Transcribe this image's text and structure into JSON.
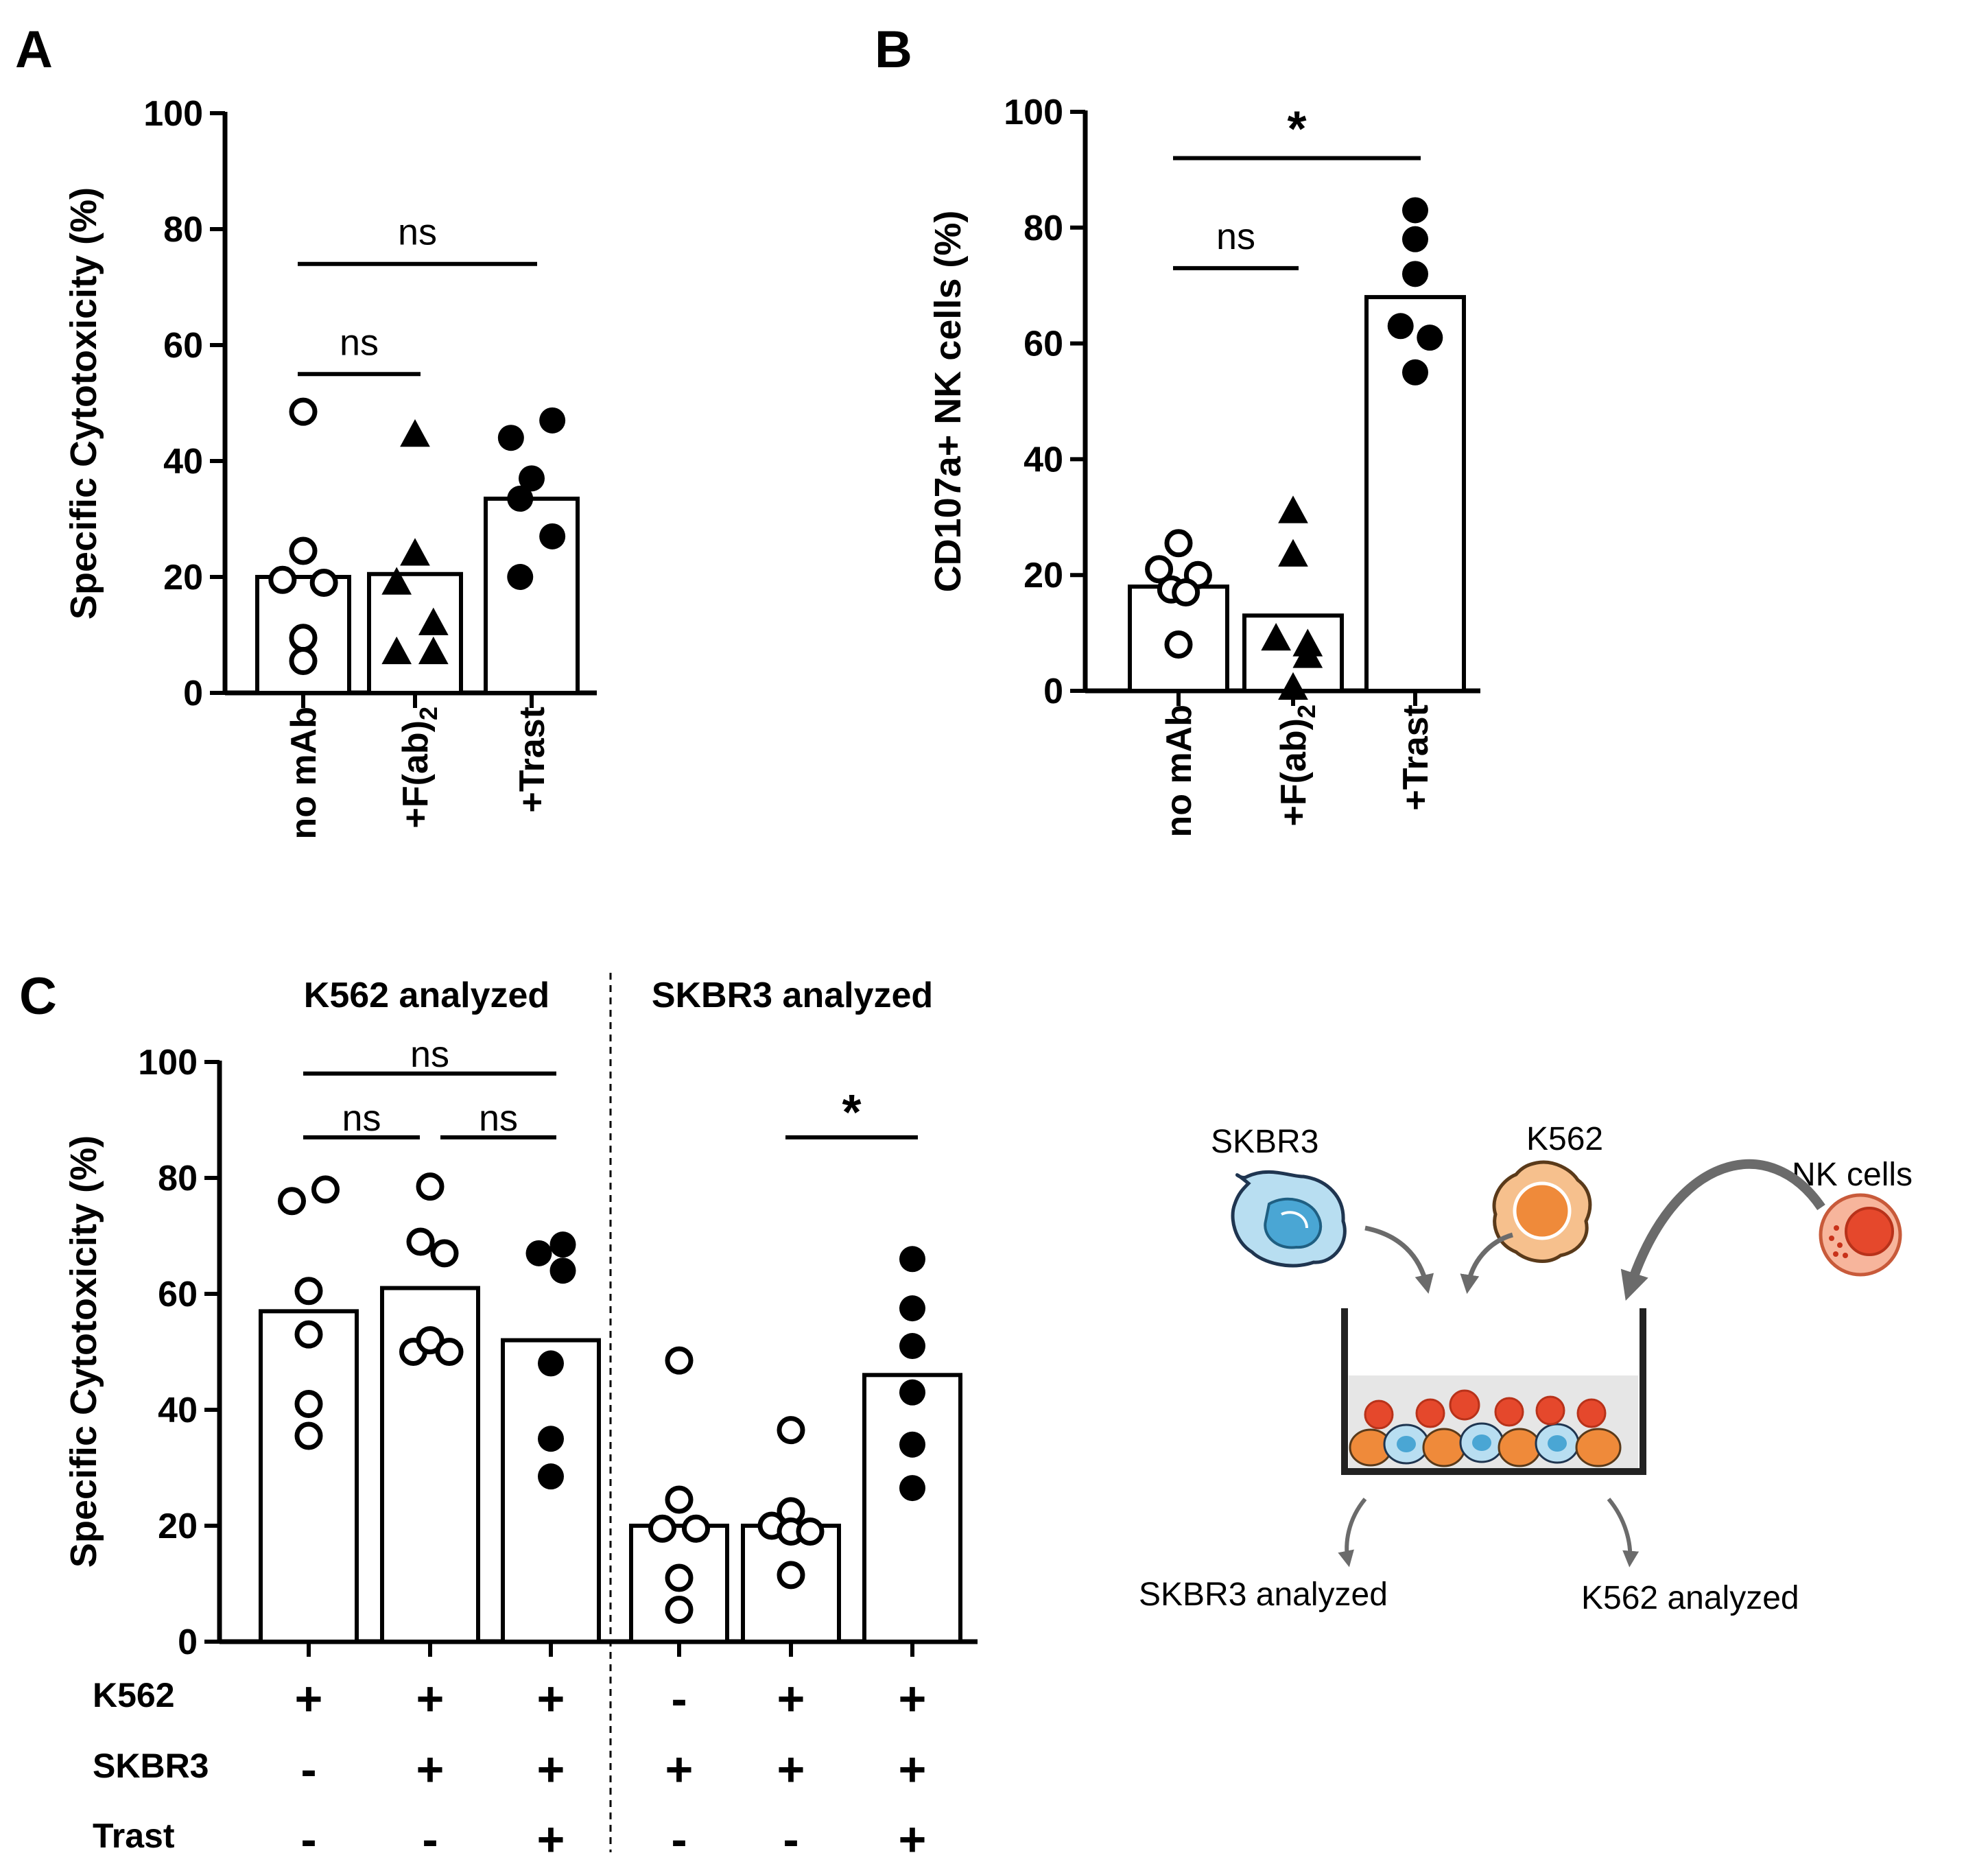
{
  "colors": {
    "ink": "#000000",
    "skbr3_fill": "#4aa6d4",
    "skbr3_light": "#b8def1",
    "k562_fill": "#ef8a3a",
    "k562_light": "#f6c08d",
    "nk_fill": "#e5482c",
    "nk_light": "#f7b59c",
    "well_medium": "#e6e6e6",
    "arrow": "#6b6b6b"
  },
  "panels": {
    "A": {
      "label": "A"
    },
    "B": {
      "label": "B"
    },
    "C": {
      "label": "C"
    }
  },
  "chart_data": [
    {
      "id": "A",
      "type": "bar",
      "title": "",
      "ylabel": "Specific Cytotoxicity (%)",
      "ylim": [
        0,
        100
      ],
      "yticks": [
        "0",
        "20",
        "40",
        "60",
        "80",
        "100"
      ],
      "categories": [
        "no mAb",
        "+F(ab)2",
        "+Trast"
      ],
      "category_labels": [
        {
          "main": "no mAb",
          "sub": ""
        },
        {
          "main": "+F(ab)",
          "sub": "2"
        },
        {
          "main": "+Trast",
          "sub": ""
        }
      ],
      "means": [
        20,
        20.5,
        33.5
      ],
      "markers": [
        "open-circle",
        "triangle",
        "filled-circle"
      ],
      "points": [
        [
          {
            "jitter": 0,
            "y": 48.5
          },
          {
            "jitter": 0,
            "y": 24.5
          },
          {
            "jitter": -0.45,
            "y": 19.5
          },
          {
            "jitter": 0.45,
            "y": 19
          },
          {
            "jitter": 0,
            "y": 9.5
          },
          {
            "jitter": 0,
            "y": 5.5
          }
        ],
        [
          {
            "jitter": 0,
            "y": 44.5
          },
          {
            "jitter": 0,
            "y": 24
          },
          {
            "jitter": -0.4,
            "y": 19
          },
          {
            "jitter": 0.4,
            "y": 12
          },
          {
            "jitter": -0.4,
            "y": 7
          },
          {
            "jitter": 0.4,
            "y": 7
          }
        ],
        [
          {
            "jitter": -0.45,
            "y": 44
          },
          {
            "jitter": 0.45,
            "y": 47
          },
          {
            "jitter": 0,
            "y": 37
          },
          {
            "jitter": -0.25,
            "y": 33.5
          },
          {
            "jitter": 0.45,
            "y": 27
          },
          {
            "jitter": -0.25,
            "y": 20
          }
        ]
      ],
      "significance": [
        {
          "from": 0,
          "to": 1,
          "label": "ns",
          "y": 55
        },
        {
          "from": 0,
          "to": 2,
          "label": "ns",
          "y": 74
        }
      ]
    },
    {
      "id": "B",
      "type": "bar",
      "title": "",
      "ylabel": "CD107a+ NK cells (%)",
      "ylim": [
        0,
        100
      ],
      "yticks": [
        "0",
        "20",
        "40",
        "60",
        "80",
        "100"
      ],
      "categories": [
        "no mAb",
        "+F(ab)2",
        "+Trast"
      ],
      "category_labels": [
        {
          "main": "no mAb",
          "sub": ""
        },
        {
          "main": "+F(ab)",
          "sub": "2"
        },
        {
          "main": "+Trast",
          "sub": ""
        }
      ],
      "means": [
        18,
        13,
        68
      ],
      "markers": [
        "open-circle",
        "triangle",
        "filled-circle"
      ],
      "points": [
        [
          {
            "jitter": 0,
            "y": 25.5
          },
          {
            "jitter": -0.4,
            "y": 21
          },
          {
            "jitter": 0.4,
            "y": 20
          },
          {
            "jitter": -0.15,
            "y": 17.5
          },
          {
            "jitter": 0.15,
            "y": 17
          },
          {
            "jitter": 0,
            "y": 8
          }
        ],
        [
          {
            "jitter": 0,
            "y": 31
          },
          {
            "jitter": 0,
            "y": 23.5
          },
          {
            "jitter": -0.35,
            "y": 9
          },
          {
            "jitter": 0.3,
            "y": 8
          },
          {
            "jitter": 0.3,
            "y": 6
          },
          {
            "jitter": 0,
            "y": 0.5
          }
        ],
        [
          {
            "jitter": 0,
            "y": 83
          },
          {
            "jitter": 0,
            "y": 78
          },
          {
            "jitter": 0,
            "y": 72
          },
          {
            "jitter": -0.3,
            "y": 63
          },
          {
            "jitter": 0.3,
            "y": 61
          },
          {
            "jitter": 0,
            "y": 55
          }
        ]
      ],
      "significance": [
        {
          "from": 0,
          "to": 1,
          "label": "ns",
          "y": 73
        },
        {
          "from": 0,
          "to": 2,
          "label": "*",
          "y": 92
        }
      ]
    },
    {
      "id": "C",
      "type": "bar",
      "title": "",
      "ylabel": "Specific Cytotoxicity (%)",
      "ylim": [
        0,
        100
      ],
      "yticks": [
        "0",
        "20",
        "40",
        "60",
        "80",
        "100"
      ],
      "groups": [
        "K562 analyzed",
        "SKBR3 analyzed"
      ],
      "row_labels": [
        "K562",
        "SKBR3",
        "Trast"
      ],
      "conditions": [
        {
          "K562": "+",
          "SKBR3": "-",
          "Trast": "-"
        },
        {
          "K562": "+",
          "SKBR3": "+",
          "Trast": "-"
        },
        {
          "K562": "+",
          "SKBR3": "+",
          "Trast": "+"
        },
        {
          "K562": "-",
          "SKBR3": "+",
          "Trast": "-"
        },
        {
          "K562": "+",
          "SKBR3": "+",
          "Trast": "-"
        },
        {
          "K562": "+",
          "SKBR3": "+",
          "Trast": "+"
        }
      ],
      "means": [
        57,
        61,
        52,
        20,
        20,
        46
      ],
      "markers": [
        "open-circle",
        "open-circle",
        "filled-circle",
        "open-circle",
        "open-circle",
        "filled-circle"
      ],
      "points": [
        [
          {
            "jitter": -0.35,
            "y": 76
          },
          {
            "jitter": 0.35,
            "y": 78
          },
          {
            "jitter": 0,
            "y": 60.5
          },
          {
            "jitter": 0,
            "y": 53
          },
          {
            "jitter": 0,
            "y": 41
          },
          {
            "jitter": 0,
            "y": 35.5
          }
        ],
        [
          {
            "jitter": 0,
            "y": 78.5
          },
          {
            "jitter": -0.2,
            "y": 69
          },
          {
            "jitter": 0.3,
            "y": 67
          },
          {
            "jitter": -0.35,
            "y": 50
          },
          {
            "jitter": 0,
            "y": 52
          },
          {
            "jitter": 0.4,
            "y": 50
          }
        ],
        [
          {
            "jitter": -0.25,
            "y": 67
          },
          {
            "jitter": 0.25,
            "y": 68.5
          },
          {
            "jitter": 0.25,
            "y": 64
          },
          {
            "jitter": 0,
            "y": 48
          },
          {
            "jitter": 0,
            "y": 35
          },
          {
            "jitter": 0,
            "y": 28.5
          }
        ],
        [
          {
            "jitter": 0,
            "y": 48.5
          },
          {
            "jitter": 0,
            "y": 24.5
          },
          {
            "jitter": -0.35,
            "y": 19.5
          },
          {
            "jitter": 0.35,
            "y": 19.5
          },
          {
            "jitter": 0,
            "y": 11
          },
          {
            "jitter": 0,
            "y": 5.5
          }
        ],
        [
          {
            "jitter": 0,
            "y": 36.5
          },
          {
            "jitter": 0,
            "y": 22.5
          },
          {
            "jitter": -0.4,
            "y": 20
          },
          {
            "jitter": 0,
            "y": 19
          },
          {
            "jitter": 0.4,
            "y": 19
          },
          {
            "jitter": 0,
            "y": 11.5
          }
        ],
        [
          {
            "jitter": 0,
            "y": 66
          },
          {
            "jitter": 0,
            "y": 57.5
          },
          {
            "jitter": 0,
            "y": 51
          },
          {
            "jitter": 0,
            "y": 43
          },
          {
            "jitter": 0,
            "y": 34
          },
          {
            "jitter": 0,
            "y": 26.5
          }
        ]
      ],
      "significance": [
        {
          "from": 0,
          "to": 1,
          "label": "ns",
          "y": 87
        },
        {
          "from": 1,
          "to": 2,
          "label": "ns",
          "y": 87
        },
        {
          "from": 0,
          "to": 2,
          "label": "ns",
          "y": 98
        },
        {
          "from": 4,
          "to": 5,
          "label": "*",
          "y": 87
        }
      ]
    }
  ],
  "diagram": {
    "skbr3_label": "SKBR3",
    "k562_label": "K562",
    "nk_label": "NK cells",
    "out_left_label": "SKBR3 analyzed",
    "out_right_label": "K562 analyzed"
  }
}
